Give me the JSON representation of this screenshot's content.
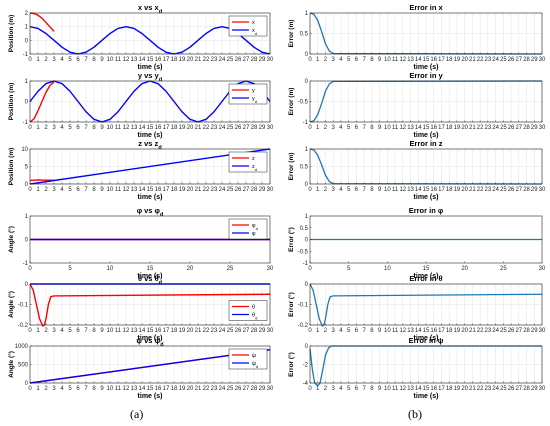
{
  "panel_labels": [
    "(a)",
    "(b)"
  ],
  "chart_data": [
    {
      "type": "line",
      "title": "x vs x",
      "title_sub": "d",
      "xlabel": "time (s)",
      "ylabel": "Position (m)",
      "xlim": [
        0,
        30
      ],
      "xticks": [
        0,
        1,
        2,
        3,
        4,
        5,
        6,
        7,
        8,
        9,
        10,
        11,
        12,
        13,
        14,
        15,
        16,
        17,
        18,
        19,
        20,
        21,
        22,
        23,
        24,
        25,
        26,
        27,
        28,
        29,
        30
      ],
      "ylim": [
        -1,
        2
      ],
      "yticks": [
        -1,
        0,
        1,
        2
      ],
      "grid": true,
      "legend": "top-right",
      "series": [
        {
          "name": "x",
          "color": "#ff0000",
          "x": [
            0,
            0.5,
            1,
            1.5,
            2,
            2.5,
            3
          ],
          "y": [
            2,
            1.96,
            1.84,
            1.62,
            1.3,
            0.98,
            0.65
          ]
        },
        {
          "name": "x",
          "sub": "d",
          "color": "#0000ff",
          "x": [
            0,
            1,
            2,
            3,
            4,
            5,
            6,
            7,
            8,
            9,
            10,
            11,
            12,
            13,
            14,
            15,
            16,
            17,
            18,
            19,
            20,
            21,
            22,
            23,
            24,
            25,
            26,
            27,
            28,
            29,
            30
          ],
          "y": [
            1,
            0.87,
            0.5,
            0,
            -0.5,
            -0.87,
            -1,
            -0.87,
            -0.5,
            0,
            0.5,
            0.87,
            1,
            0.87,
            0.5,
            0,
            -0.5,
            -0.87,
            -1,
            -0.87,
            -0.5,
            0,
            0.5,
            0.87,
            1,
            0.87,
            0.5,
            0,
            -0.5,
            -0.87,
            -1
          ]
        }
      ]
    },
    {
      "type": "line",
      "title": "y vs y",
      "title_sub": "d",
      "xlabel": "time (s)",
      "ylabel": "Position (m)",
      "xlim": [
        0,
        30
      ],
      "xticks": [
        0,
        1,
        2,
        3,
        4,
        5,
        6,
        7,
        8,
        9,
        10,
        11,
        12,
        13,
        14,
        15,
        16,
        17,
        18,
        19,
        20,
        21,
        22,
        23,
        24,
        25,
        26,
        27,
        28,
        29,
        30
      ],
      "ylim": [
        -1,
        1
      ],
      "yticks": [
        -1,
        0,
        1
      ],
      "grid": true,
      "legend": "top-right",
      "series": [
        {
          "name": "y",
          "color": "#ff0000",
          "x": [
            0,
            0.5,
            1,
            1.5,
            2,
            2.5,
            3
          ],
          "y": [
            -1,
            -0.85,
            -0.45,
            0,
            0.45,
            0.78,
            0.95
          ]
        },
        {
          "name": "y",
          "sub": "d",
          "color": "#0000ff",
          "x": [
            0,
            1,
            2,
            3,
            4,
            5,
            6,
            7,
            8,
            9,
            10,
            11,
            12,
            13,
            14,
            15,
            16,
            17,
            18,
            19,
            20,
            21,
            22,
            23,
            24,
            25,
            26,
            27,
            28,
            29,
            30
          ],
          "y": [
            0,
            0.5,
            0.87,
            1,
            0.87,
            0.5,
            0,
            -0.5,
            -0.87,
            -1,
            -0.87,
            -0.5,
            0,
            0.5,
            0.87,
            1,
            0.87,
            0.5,
            0,
            -0.5,
            -0.87,
            -1,
            -0.87,
            -0.5,
            0,
            0.5,
            0.87,
            1,
            0.87,
            0.5,
            0
          ]
        }
      ]
    },
    {
      "type": "line",
      "title": "z vs z",
      "title_sub": "d",
      "xlabel": "time (s)",
      "ylabel": "Position (m)",
      "xlim": [
        0,
        30
      ],
      "xticks": [
        0,
        1,
        2,
        3,
        4,
        5,
        6,
        7,
        8,
        9,
        10,
        11,
        12,
        13,
        14,
        15,
        16,
        17,
        18,
        19,
        20,
        21,
        22,
        23,
        24,
        25,
        26,
        27,
        28,
        29,
        30
      ],
      "ylim": [
        0,
        10
      ],
      "yticks": [
        0,
        5,
        10
      ],
      "grid": true,
      "legend": "top-right",
      "series": [
        {
          "name": "z",
          "color": "#ff0000",
          "x": [
            0,
            1,
            2,
            3
          ],
          "y": [
            1,
            1.15,
            1.1,
            1.05
          ]
        },
        {
          "name": "z",
          "sub": "d",
          "color": "#0000ff",
          "x": [
            0,
            30
          ],
          "y": [
            0,
            10
          ]
        }
      ]
    },
    {
      "type": "line",
      "title": "φ vs φ",
      "title_sub": "d",
      "xlabel": "time (s)",
      "ylabel": "Angle (°)",
      "xlim": [
        0,
        30
      ],
      "xticks": [
        0,
        5,
        10,
        15,
        20,
        25,
        30
      ],
      "ylim": [
        -1,
        1
      ],
      "yticks": [
        -1,
        0,
        1
      ],
      "grid": false,
      "legend": "top-right",
      "series": [
        {
          "name": "φ",
          "sub": "d",
          "color": "#ff0000",
          "x": [
            0,
            30
          ],
          "y": [
            0,
            0
          ]
        },
        {
          "name": "φ",
          "color": "#0000ff",
          "x": [
            0,
            30
          ],
          "y": [
            0,
            0
          ]
        }
      ]
    },
    {
      "type": "line",
      "title": "θ vs θ",
      "title_sub": "d",
      "xlabel": "time (s)",
      "ylabel": "Angle (°)",
      "xlim": [
        0,
        30
      ],
      "xticks": [
        0,
        1,
        2,
        3,
        4,
        5,
        6,
        7,
        8,
        9,
        10,
        11,
        12,
        13,
        14,
        15,
        16,
        17,
        18,
        19,
        20,
        21,
        22,
        23,
        24,
        25,
        26,
        27,
        28,
        29,
        30
      ],
      "ylim": [
        -0.2,
        0
      ],
      "yticks": [
        -0.2,
        -0.1,
        0
      ],
      "grid": true,
      "legend": "right",
      "series": [
        {
          "name": "θ",
          "color": "#ff0000",
          "x": [
            0,
            0.4,
            0.8,
            1.2,
            1.6,
            1.8,
            2,
            2.3,
            2.6,
            3,
            30
          ],
          "y": [
            0,
            -0.03,
            -0.1,
            -0.17,
            -0.205,
            -0.2,
            -0.17,
            -0.1,
            -0.062,
            -0.058,
            -0.05
          ]
        },
        {
          "name": "θ",
          "sub": "d",
          "color": "#0000ff",
          "x": [
            0,
            30
          ],
          "y": [
            0,
            0
          ]
        }
      ]
    },
    {
      "type": "line",
      "title": "ψ vs ψ",
      "title_sub": "d",
      "xlabel": "time (s)",
      "ylabel": "Angle (°)",
      "xlim": [
        0,
        30
      ],
      "xticks": [
        0,
        1,
        2,
        3,
        4,
        5,
        6,
        7,
        8,
        9,
        10,
        11,
        12,
        13,
        14,
        15,
        16,
        17,
        18,
        19,
        20,
        21,
        22,
        23,
        24,
        25,
        26,
        27,
        28,
        29,
        30
      ],
      "ylim": [
        0,
        1000
      ],
      "yticks": [
        0,
        500,
        1000
      ],
      "grid": true,
      "legend": "top-right",
      "series": [
        {
          "name": "ψ",
          "color": "#ff0000",
          "x": [
            0,
            30
          ],
          "y": [
            0,
            900
          ]
        },
        {
          "name": "ψ",
          "sub": "d",
          "color": "#0000ff",
          "x": [
            0,
            30
          ],
          "y": [
            0,
            900
          ]
        }
      ]
    },
    {
      "type": "line",
      "title": "Error in x",
      "xlabel": "time (s)",
      "ylabel": "Error (m)",
      "xlim": [
        0,
        30
      ],
      "xticks": [
        0,
        1,
        2,
        3,
        4,
        5,
        6,
        7,
        8,
        9,
        10,
        11,
        12,
        13,
        14,
        15,
        16,
        17,
        18,
        19,
        20,
        21,
        22,
        23,
        24,
        25,
        26,
        27,
        28,
        29,
        30
      ],
      "ylim": [
        0,
        1
      ],
      "yticks": [
        0,
        0.5,
        1
      ],
      "grid": true,
      "series": [
        {
          "color": "#1f77b4",
          "x": [
            0,
            0.5,
            1,
            1.5,
            2,
            2.5,
            3,
            30
          ],
          "y": [
            1,
            0.97,
            0.82,
            0.55,
            0.25,
            0.07,
            0.01,
            0
          ]
        }
      ]
    },
    {
      "type": "line",
      "title": "Error in y",
      "xlabel": "time (s)",
      "ylabel": "Error (m)",
      "xlim": [
        0,
        30
      ],
      "xticks": [
        0,
        1,
        2,
        3,
        4,
        5,
        6,
        7,
        8,
        9,
        10,
        11,
        12,
        13,
        14,
        15,
        16,
        17,
        18,
        19,
        20,
        21,
        22,
        23,
        24,
        25,
        26,
        27,
        28,
        29,
        30
      ],
      "ylim": [
        -1,
        0
      ],
      "yticks": [
        -1,
        -0.5,
        0
      ],
      "grid": true,
      "series": [
        {
          "color": "#1f77b4",
          "x": [
            0,
            0.5,
            1,
            1.5,
            2,
            2.5,
            3,
            30
          ],
          "y": [
            -1,
            -0.97,
            -0.82,
            -0.55,
            -0.25,
            -0.07,
            -0.01,
            0
          ]
        }
      ]
    },
    {
      "type": "line",
      "title": "Error in z",
      "xlabel": "time (s)",
      "ylabel": "Error (m)",
      "xlim": [
        0,
        30
      ],
      "xticks": [
        0,
        1,
        2,
        3,
        4,
        5,
        6,
        7,
        8,
        9,
        10,
        11,
        12,
        13,
        14,
        15,
        16,
        17,
        18,
        19,
        20,
        21,
        22,
        23,
        24,
        25,
        26,
        27,
        28,
        29,
        30
      ],
      "ylim": [
        0,
        1
      ],
      "yticks": [
        0,
        0.5,
        1
      ],
      "grid": true,
      "series": [
        {
          "color": "#1f77b4",
          "x": [
            0,
            0.5,
            1,
            1.5,
            2,
            2.5,
            3,
            30
          ],
          "y": [
            1,
            0.97,
            0.82,
            0.55,
            0.25,
            0.07,
            0.01,
            0
          ]
        }
      ]
    },
    {
      "type": "line",
      "title": "Error in φ",
      "xlabel": "time (s)",
      "ylabel": "Error (°)",
      "xlim": [
        0,
        30
      ],
      "xticks": [
        0,
        5,
        10,
        15,
        20,
        25,
        30
      ],
      "ylim": [
        -1,
        1
      ],
      "yticks": [
        -1,
        -0.5,
        0,
        0.5,
        1
      ],
      "grid": false,
      "series": [
        {
          "color": "#1f77b4",
          "x": [
            0,
            30
          ],
          "y": [
            0,
            0
          ]
        }
      ]
    },
    {
      "type": "line",
      "title": "Error in θ",
      "xlabel": "time (s)",
      "ylabel": "Error (°)",
      "xlim": [
        0,
        30
      ],
      "xticks": [
        0,
        1,
        2,
        3,
        4,
        5,
        6,
        7,
        8,
        9,
        10,
        11,
        12,
        13,
        14,
        15,
        16,
        17,
        18,
        19,
        20,
        21,
        22,
        23,
        24,
        25,
        26,
        27,
        28,
        29,
        30
      ],
      "ylim": [
        -0.2,
        0
      ],
      "yticks": [
        -0.2,
        -0.1,
        0
      ],
      "grid": true,
      "series": [
        {
          "color": "#1f77b4",
          "x": [
            0,
            0.4,
            0.8,
            1.2,
            1.6,
            1.8,
            2,
            2.3,
            2.6,
            3,
            30
          ],
          "y": [
            0,
            -0.03,
            -0.1,
            -0.17,
            -0.205,
            -0.2,
            -0.17,
            -0.1,
            -0.062,
            -0.058,
            -0.05
          ]
        }
      ]
    },
    {
      "type": "line",
      "title": "Error in ψ",
      "xlabel": "time (s)",
      "ylabel": "Error (°)",
      "xlim": [
        0,
        30
      ],
      "xticks": [
        0,
        1,
        2,
        3,
        4,
        5,
        6,
        7,
        8,
        9,
        10,
        11,
        12,
        13,
        14,
        15,
        16,
        17,
        18,
        19,
        20,
        21,
        22,
        23,
        24,
        25,
        26,
        27,
        28,
        29,
        30
      ],
      "ylim": [
        -4,
        0
      ],
      "yticks": [
        -4,
        -2,
        0
      ],
      "grid": true,
      "series": [
        {
          "color": "#1f77b4",
          "x": [
            0,
            0.3,
            0.6,
            1,
            1.3,
            1.6,
            2,
            2.4,
            2.8,
            30
          ],
          "y": [
            -0.3,
            -2.5,
            -4,
            -4.3,
            -4,
            -2.8,
            -1,
            -0.2,
            0,
            0
          ]
        }
      ]
    }
  ]
}
